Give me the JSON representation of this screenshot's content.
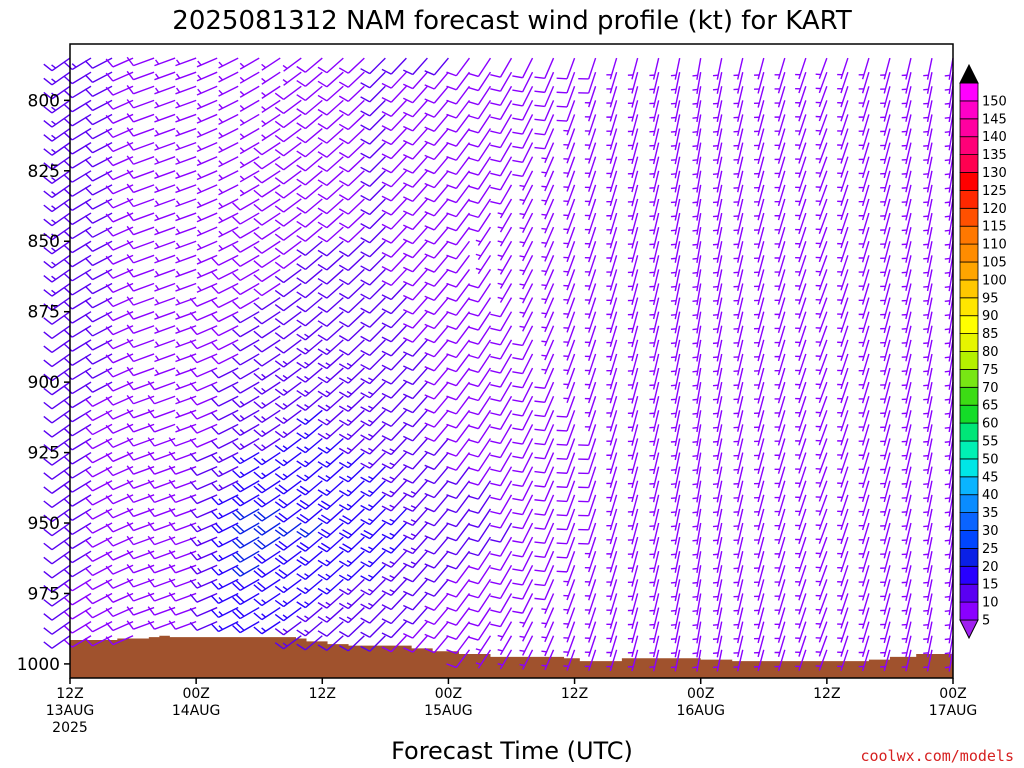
{
  "chart_data": {
    "type": "wind-barb-profile",
    "title": "2025081312 NAM forecast wind profile (kt) for KART",
    "xlabel": "Forecast Time (UTC)",
    "ylabel": "",
    "y_axis": {
      "units": "hPa",
      "reversed": true,
      "range": [
        780,
        1005
      ],
      "ticks": [
        800,
        825,
        850,
        875,
        900,
        925,
        950,
        975,
        1000
      ]
    },
    "x_axis": {
      "units": "forecast hour",
      "range": [
        0,
        84
      ],
      "ticks": [
        {
          "hour": 0,
          "lines": [
            "12Z",
            "13AUG",
            "2025"
          ]
        },
        {
          "hour": 12,
          "lines": [
            "00Z",
            "14AUG"
          ]
        },
        {
          "hour": 24,
          "lines": [
            "12Z"
          ]
        },
        {
          "hour": 36,
          "lines": [
            "00Z",
            "15AUG"
          ]
        },
        {
          "hour": 48,
          "lines": [
            "12Z"
          ]
        },
        {
          "hour": 60,
          "lines": [
            "00Z",
            "16AUG"
          ]
        },
        {
          "hour": 72,
          "lines": [
            "12Z"
          ]
        },
        {
          "hour": 84,
          "lines": [
            "00Z",
            "17AUG"
          ]
        }
      ]
    },
    "colorbar": {
      "units": "kt",
      "levels": [
        5,
        10,
        15,
        20,
        25,
        30,
        35,
        40,
        45,
        50,
        55,
        60,
        65,
        70,
        75,
        80,
        85,
        90,
        95,
        100,
        105,
        110,
        115,
        120,
        125,
        130,
        135,
        140,
        145,
        150
      ],
      "colors": [
        "#8a00ff",
        "#5a00f2",
        "#2800ff",
        "#0a20e6",
        "#0046ff",
        "#0a64ff",
        "#0a8cff",
        "#0ab4ff",
        "#00e6e6",
        "#00f0b4",
        "#00e678",
        "#14dc28",
        "#3cdc14",
        "#78e614",
        "#b4f000",
        "#e6f500",
        "#ffff00",
        "#ffe600",
        "#ffc800",
        "#ffa500",
        "#ff8c00",
        "#ff7800",
        "#ff5000",
        "#ff2800",
        "#ff0000",
        "#ff0050",
        "#ff0078",
        "#ff00a0",
        "#ff00c8",
        "#ff00ff"
      ],
      "min_color": "#a020f0",
      "max_color": "#000000"
    },
    "terrain_color": "#a0522d",
    "surface_pressure": [
      {
        "hour": 0,
        "p": 991.5
      },
      {
        "hour": 4.5,
        "p": 991.0
      },
      {
        "hour": 7.5,
        "p": 990.5
      },
      {
        "hour": 8.5,
        "p": 990.0
      },
      {
        "hour": 9.5,
        "p": 990.5
      },
      {
        "hour": 20.5,
        "p": 990.5
      },
      {
        "hour": 21.5,
        "p": 991.0
      },
      {
        "hour": 22.5,
        "p": 992.0
      },
      {
        "hour": 24.5,
        "p": 993.0
      },
      {
        "hour": 26.5,
        "p": 993.5
      },
      {
        "hour": 32.5,
        "p": 994.5
      },
      {
        "hour": 34.5,
        "p": 995.5
      },
      {
        "hour": 37,
        "p": 996.5
      },
      {
        "hour": 40,
        "p": 997.5
      },
      {
        "hour": 47,
        "p": 998.0
      },
      {
        "hour": 48.5,
        "p": 999.0
      },
      {
        "hour": 52.5,
        "p": 998.0
      },
      {
        "hour": 60,
        "p": 998.5
      },
      {
        "hour": 63,
        "p": 999.0
      },
      {
        "hour": 76,
        "p": 998.5
      },
      {
        "hour": 78,
        "p": 997.5
      },
      {
        "hour": 80.5,
        "p": 996.5
      },
      {
        "hour": 84,
        "p": 996.5
      }
    ],
    "barb_levels_hpa": [
      785,
      790,
      795,
      800,
      805,
      810,
      815,
      820,
      825,
      830,
      835,
      840,
      845,
      850,
      855,
      860,
      865,
      870,
      875,
      880,
      885,
      890,
      895,
      900,
      905,
      910,
      915,
      920,
      925,
      930,
      935,
      940,
      945,
      950,
      955,
      960,
      965,
      970,
      975,
      980,
      985,
      990,
      995
    ],
    "barb_hours": [
      0,
      2,
      4,
      6,
      8,
      10,
      12,
      14,
      16,
      18,
      20,
      22,
      24,
      26,
      28,
      30,
      32,
      34,
      36,
      38,
      40,
      42,
      44,
      46,
      48,
      50,
      52,
      54,
      56,
      58,
      60,
      62,
      64,
      66,
      68,
      70,
      72,
      74,
      76,
      78,
      80,
      82,
      84
    ],
    "wind_key_points": [
      {
        "hour": 0,
        "dir": 235,
        "spd": [
          [
            785,
            14
          ],
          [
            900,
            12
          ],
          [
            1000,
            10
          ]
        ]
      },
      {
        "hour": 8,
        "dir": 250,
        "spd": [
          [
            785,
            8
          ],
          [
            900,
            8
          ],
          [
            1000,
            8
          ]
        ]
      },
      {
        "hour": 12,
        "dir": 250,
        "spd": [
          [
            785,
            5
          ],
          [
            900,
            7
          ],
          [
            1000,
            10
          ]
        ]
      },
      {
        "hour": 18,
        "dir": 240,
        "spd": [
          [
            785,
            6
          ],
          [
            850,
            8
          ],
          [
            920,
            14
          ],
          [
            950,
            22
          ],
          [
            980,
            18
          ]
        ]
      },
      {
        "hour": 24,
        "dir": 230,
        "spd": [
          [
            785,
            8
          ],
          [
            850,
            10
          ],
          [
            920,
            16
          ],
          [
            950,
            20
          ],
          [
            990,
            12
          ]
        ]
      },
      {
        "hour": 30,
        "dir": 225,
        "spd": [
          [
            785,
            10
          ],
          [
            850,
            10
          ],
          [
            920,
            14
          ],
          [
            950,
            18
          ],
          [
            990,
            10
          ]
        ]
      },
      {
        "hour": 36,
        "dir": 220,
        "spd": [
          [
            785,
            10
          ],
          [
            850,
            8
          ],
          [
            920,
            10
          ],
          [
            950,
            12
          ],
          [
            990,
            8
          ]
        ]
      },
      {
        "hour": 48,
        "dir": 200,
        "spd": [
          [
            785,
            8
          ],
          [
            850,
            6
          ],
          [
            920,
            8
          ],
          [
            950,
            8
          ],
          [
            990,
            6
          ]
        ]
      },
      {
        "hour": 60,
        "dir": 190,
        "spd": [
          [
            785,
            6
          ],
          [
            850,
            6
          ],
          [
            920,
            6
          ],
          [
            950,
            5
          ],
          [
            990,
            5
          ]
        ]
      },
      {
        "hour": 72,
        "dir": 200,
        "spd": [
          [
            785,
            6
          ],
          [
            850,
            6
          ],
          [
            920,
            5
          ],
          [
            950,
            5
          ],
          [
            990,
            5
          ]
        ]
      },
      {
        "hour": 84,
        "dir": 190,
        "spd": [
          [
            785,
            7
          ],
          [
            850,
            6
          ],
          [
            920,
            6
          ],
          [
            950,
            6
          ],
          [
            990,
            6
          ]
        ]
      }
    ]
  },
  "credit": "coolwx.com/models"
}
